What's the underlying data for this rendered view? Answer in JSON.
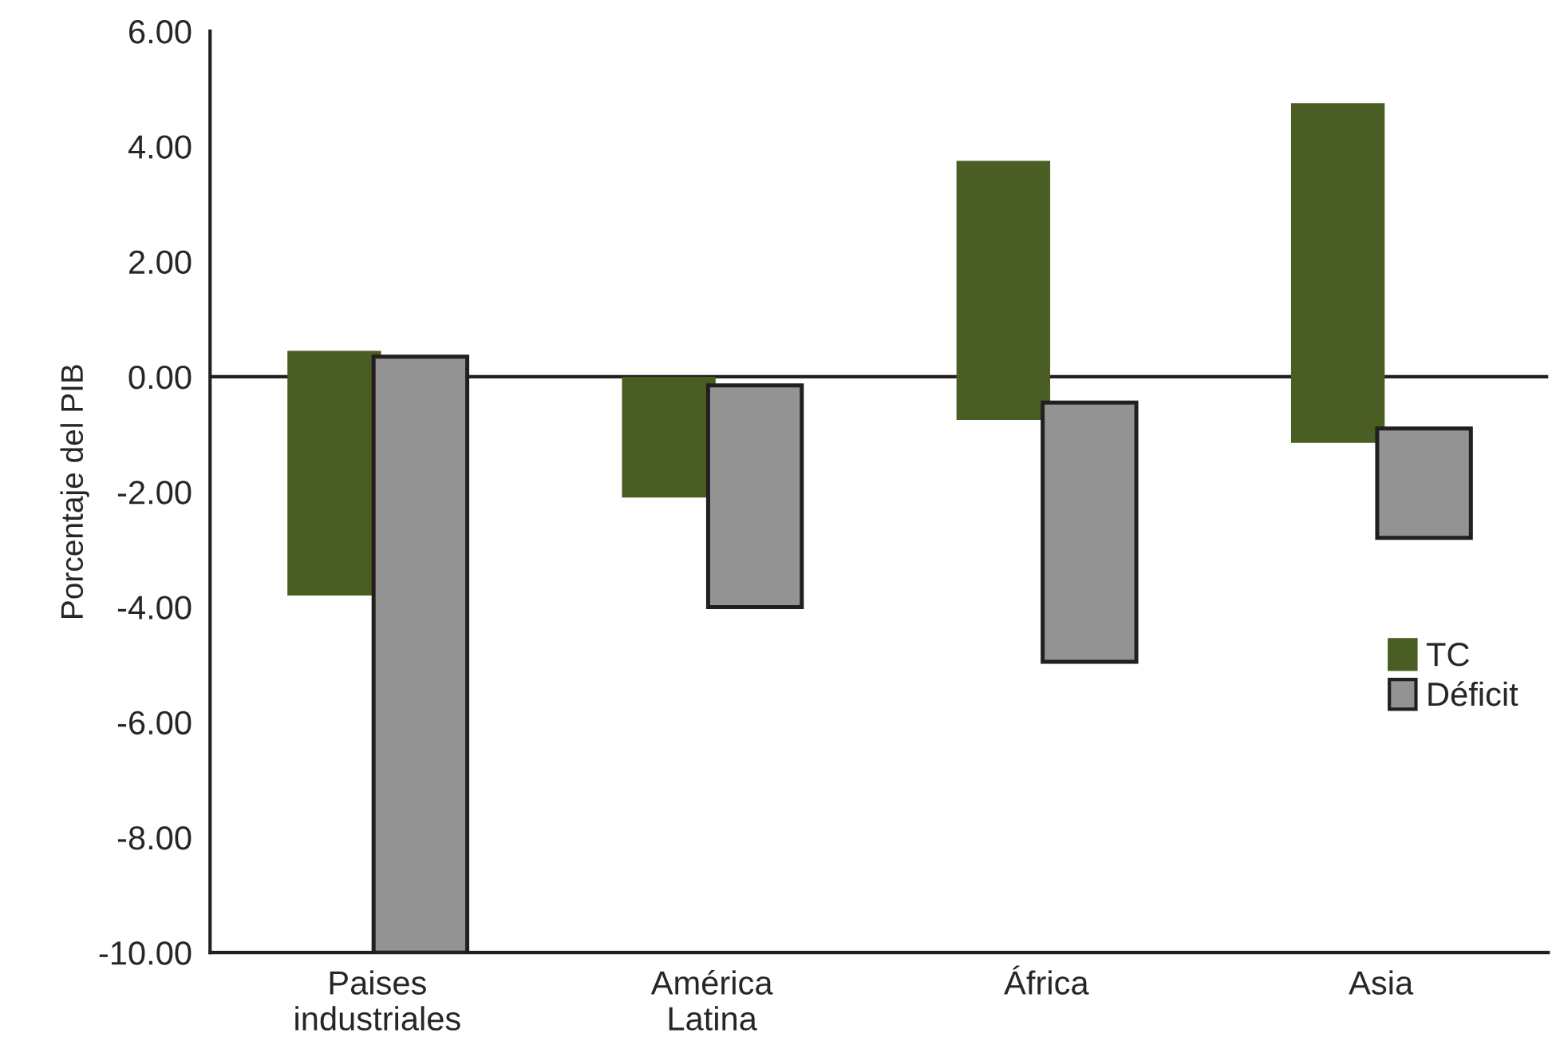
{
  "chart_data": {
    "type": "bar",
    "ylabel": "Porcentaje del PIB",
    "categories": [
      "Paises\nindustriales",
      "América\nLatina",
      "África",
      "Asia"
    ],
    "series": [
      {
        "name": "TC",
        "color": "#4a5e23",
        "base": [
          -3.8,
          -2.1,
          -0.75,
          -1.15
        ],
        "values": [
          4.25,
          2.1,
          4.5,
          5.9
        ]
      },
      {
        "name": "Déficit",
        "color": "#939393",
        "base": [
          -10,
          -4.0,
          -4.95,
          -2.8
        ],
        "values": [
          10.35,
          3.85,
          4.5,
          1.9
        ]
      }
    ],
    "ylim": [
      -10,
      6
    ],
    "yticks": [
      {
        "value": -10,
        "label": "-10.00"
      },
      {
        "value": -8,
        "label": "-8.00"
      },
      {
        "value": -6,
        "label": "-6.00"
      },
      {
        "value": -4,
        "label": "-4.00"
      },
      {
        "value": -2,
        "label": "-2.00"
      },
      {
        "value": 0,
        "label": "0.00"
      },
      {
        "value": 2,
        "label": "2.00"
      },
      {
        "value": 4,
        "label": "4.00"
      },
      {
        "value": 6,
        "label": "6.00"
      }
    ],
    "ref_lines": [
      {
        "axis": "y",
        "value": 0,
        "color": "#231f20"
      }
    ],
    "grid": false,
    "legend": "right"
  }
}
